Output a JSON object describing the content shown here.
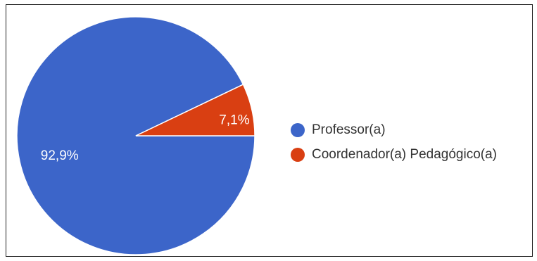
{
  "chart_data": {
    "type": "pie",
    "slices": [
      {
        "name": "Professor(a)",
        "value": 92.9,
        "label": "92,9%",
        "color": "#3c65c9"
      },
      {
        "name": "Coordenador(a) Pedagógico(a)",
        "value": 7.1,
        "label": "7,1%",
        "color": "#d93f12"
      }
    ],
    "legend_position": "right"
  }
}
